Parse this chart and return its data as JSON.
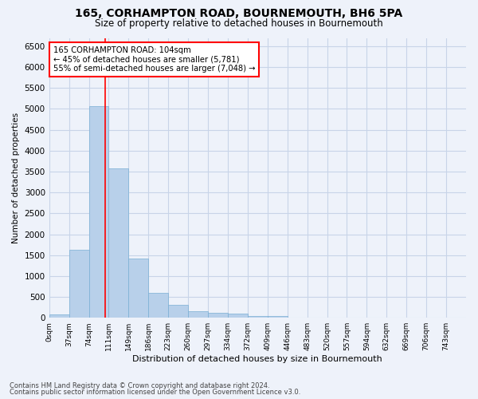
{
  "title1": "165, CORHAMPTON ROAD, BOURNEMOUTH, BH6 5PA",
  "title2": "Size of property relative to detached houses in Bournemouth",
  "xlabel": "Distribution of detached houses by size in Bournemouth",
  "ylabel": "Number of detached properties",
  "footnote1": "Contains HM Land Registry data © Crown copyright and database right 2024.",
  "footnote2": "Contains public sector information licensed under the Open Government Licence v3.0.",
  "annotation_line1": "165 CORHAMPTON ROAD: 104sqm",
  "annotation_line2": "← 45% of detached houses are smaller (5,781)",
  "annotation_line3": "55% of semi-detached houses are larger (7,048) →",
  "bar_values": [
    75,
    1625,
    5075,
    3575,
    1425,
    600,
    310,
    155,
    115,
    90,
    50,
    35,
    0,
    0,
    0,
    0,
    0,
    0,
    0,
    0,
    0
  ],
  "bin_labels": [
    "0sqm",
    "37sqm",
    "74sqm",
    "111sqm",
    "149sqm",
    "186sqm",
    "223sqm",
    "260sqm",
    "297sqm",
    "334sqm",
    "372sqm",
    "409sqm",
    "446sqm",
    "483sqm",
    "520sqm",
    "557sqm",
    "594sqm",
    "632sqm",
    "669sqm",
    "706sqm",
    "743sqm"
  ],
  "bar_color": "#b8d0ea",
  "bar_edge_color": "#7aafd4",
  "grid_color": "#c8d4e8",
  "background_color": "#eef2fa",
  "ylim": [
    0,
    6700
  ],
  "yticks": [
    0,
    500,
    1000,
    1500,
    2000,
    2500,
    3000,
    3500,
    4000,
    4500,
    5000,
    5500,
    6000,
    6500
  ],
  "property_size": 104,
  "bin_starts": [
    0,
    37,
    74,
    111,
    149,
    186,
    223,
    260,
    297,
    334,
    372,
    409,
    446,
    483,
    520,
    557,
    594,
    632,
    669,
    706,
    743
  ],
  "bin_width": 37,
  "red_line_bin_idx": 2,
  "figsize": [
    6.0,
    5.0
  ],
  "dpi": 100
}
